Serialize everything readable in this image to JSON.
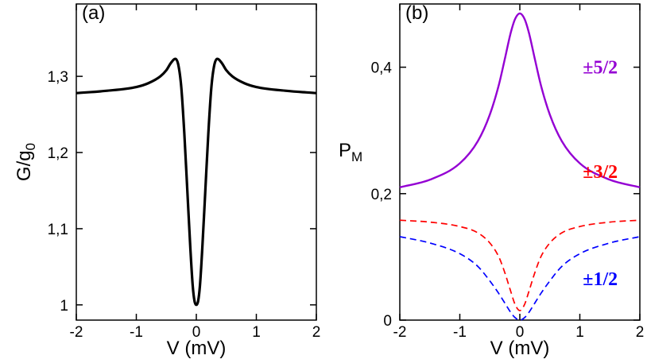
{
  "chart_data": [
    {
      "type": "line",
      "panel_label": "(a)",
      "xlabel": "V (mV)",
      "ylabel_main": "G/g",
      "ylabel_sub": "0",
      "xlim": [
        -2,
        2
      ],
      "ylim": [
        0.98,
        1.395
      ],
      "xticks": [
        -2,
        -1,
        0,
        1,
        2
      ],
      "xtick_labels": [
        "-2",
        "-1",
        "0",
        "1",
        "2"
      ],
      "yticks": [
        1.0,
        1.1,
        1.2,
        1.3
      ],
      "ytick_labels": [
        "1",
        "1,1",
        "1,2",
        "1,3"
      ],
      "series": [
        {
          "name": "G/g0",
          "color": "#000000",
          "style": "solid",
          "x": [
            -2.0,
            -1.5,
            -1.0,
            -0.8,
            -0.6,
            -0.5,
            -0.42,
            -0.35,
            -0.3,
            -0.25,
            -0.2,
            -0.15,
            -0.1,
            -0.06,
            -0.03,
            0.0,
            0.03,
            0.06,
            0.1,
            0.15,
            0.2,
            0.25,
            0.3,
            0.35,
            0.42,
            0.5,
            0.6,
            0.8,
            1.0,
            1.5,
            2.0
          ],
          "y": [
            1.278,
            1.281,
            1.286,
            1.291,
            1.3,
            1.308,
            1.318,
            1.323,
            1.315,
            1.285,
            1.225,
            1.15,
            1.075,
            1.025,
            1.005,
            1.0,
            1.005,
            1.025,
            1.075,
            1.15,
            1.225,
            1.285,
            1.315,
            1.323,
            1.318,
            1.308,
            1.3,
            1.291,
            1.286,
            1.281,
            1.278
          ]
        }
      ]
    },
    {
      "type": "line",
      "panel_label": "(b)",
      "xlabel": "V (mV)",
      "ylabel_main": "P",
      "ylabel_sub": "M",
      "xlim": [
        -2,
        2
      ],
      "ylim": [
        0,
        0.5
      ],
      "xticks": [
        -2,
        -1,
        0,
        1,
        2
      ],
      "xtick_labels": [
        "-2",
        "-1",
        "0",
        "1",
        "2"
      ],
      "yticks": [
        0,
        0.2,
        0.4
      ],
      "ytick_labels": [
        "0",
        "0,2",
        "0,4"
      ],
      "series": [
        {
          "name": "±5/2",
          "color": "#9400d3",
          "style": "solid",
          "x": [
            -2.0,
            -1.5,
            -1.0,
            -0.7,
            -0.5,
            -0.35,
            -0.25,
            -0.15,
            -0.08,
            0.0,
            0.08,
            0.15,
            0.25,
            0.35,
            0.5,
            0.7,
            1.0,
            1.5,
            2.0
          ],
          "y": [
            0.21,
            0.222,
            0.248,
            0.283,
            0.325,
            0.372,
            0.413,
            0.455,
            0.476,
            0.485,
            0.476,
            0.455,
            0.413,
            0.372,
            0.325,
            0.283,
            0.248,
            0.222,
            0.21
          ]
        },
        {
          "name": "±3/2",
          "color": "#ff0000",
          "style": "dashed",
          "x": [
            -2.0,
            -1.5,
            -1.0,
            -0.7,
            -0.5,
            -0.35,
            -0.25,
            -0.15,
            -0.08,
            0.0,
            0.08,
            0.15,
            0.25,
            0.35,
            0.5,
            0.7,
            1.0,
            1.5,
            2.0
          ],
          "y": [
            0.158,
            0.155,
            0.148,
            0.138,
            0.122,
            0.1,
            0.075,
            0.045,
            0.025,
            0.015,
            0.025,
            0.045,
            0.075,
            0.1,
            0.122,
            0.138,
            0.148,
            0.155,
            0.158
          ]
        },
        {
          "name": "±1/2",
          "color": "#0000ff",
          "style": "dashed",
          "x": [
            -2.0,
            -1.5,
            -1.0,
            -0.7,
            -0.5,
            -0.35,
            -0.25,
            -0.15,
            -0.08,
            0.0,
            0.08,
            0.15,
            0.25,
            0.35,
            0.5,
            0.7,
            1.0,
            1.5,
            2.0
          ],
          "y": [
            0.132,
            0.122,
            0.105,
            0.085,
            0.062,
            0.042,
            0.027,
            0.012,
            0.004,
            0.0,
            0.004,
            0.012,
            0.027,
            0.042,
            0.062,
            0.085,
            0.105,
            0.122,
            0.132
          ]
        }
      ],
      "annotations": [
        {
          "text": "±5/2",
          "color": "#9400d3",
          "x": 1.05,
          "y": 0.39
        },
        {
          "text": "±3/2",
          "color": "#ff0000",
          "x": 1.05,
          "y": 0.225
        },
        {
          "text": "±1/2",
          "color": "#0000ff",
          "x": 1.05,
          "y": 0.055
        }
      ]
    }
  ]
}
